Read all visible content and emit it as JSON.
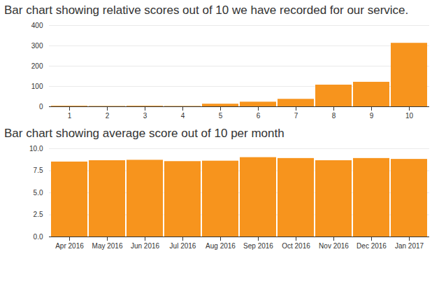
{
  "chart_data": [
    {
      "type": "bar",
      "title": "Bar chart showing relative scores out of 10 we have recorded for our service.",
      "categories": [
        1,
        2,
        3,
        4,
        5,
        6,
        7,
        8,
        9,
        10
      ],
      "values": [
        3,
        2,
        3,
        2,
        13,
        23,
        37,
        107,
        121,
        313
      ],
      "color": "#f7941d",
      "ylim": [
        0,
        400
      ],
      "yticks": [
        0,
        100,
        200,
        300,
        400
      ],
      "grid": true
    },
    {
      "type": "bar",
      "title": "Bar chart showing average score out of 10 per month",
      "categories": [
        "Apr 2016",
        "May 2016",
        "Jun 2016",
        "Jul 2016",
        "Aug 2016",
        "Sep 2016",
        "Oct 2016",
        "Nov 2016",
        "Dec 2016",
        "Jan 2017"
      ],
      "values": [
        8.5,
        8.65,
        8.7,
        8.55,
        8.6,
        9.0,
        8.9,
        8.65,
        8.9,
        8.8
      ],
      "color": "#f7941d",
      "ylim": [
        0,
        10
      ],
      "yticks": [
        {
          "value": 0,
          "label": "0.0"
        },
        {
          "value": 2.5,
          "label": "2.5"
        },
        {
          "value": 5,
          "label": "5.0"
        },
        {
          "value": 7.5,
          "label": "7.5"
        },
        {
          "value": 10,
          "label": "10.0"
        }
      ],
      "grid": true
    }
  ]
}
